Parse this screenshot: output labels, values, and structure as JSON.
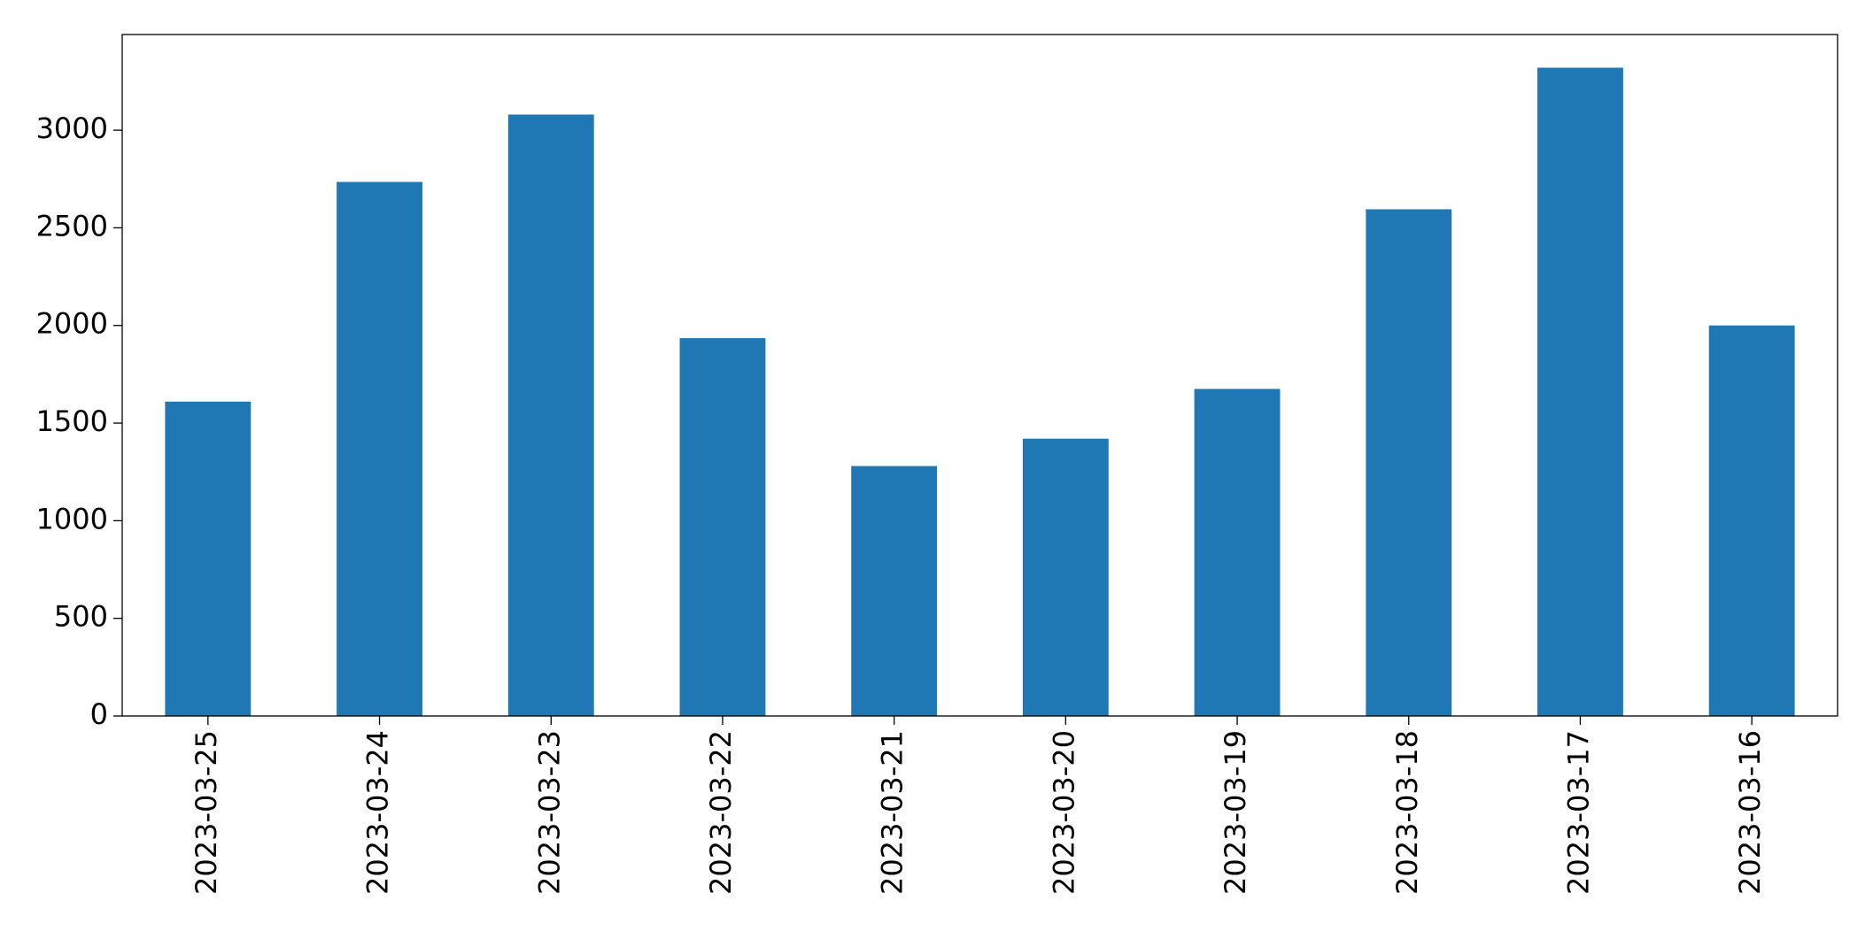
{
  "chart_data": {
    "type": "bar",
    "categories": [
      "2023-03-25",
      "2023-03-24",
      "2023-03-23",
      "2023-03-22",
      "2023-03-21",
      "2023-03-20",
      "2023-03-19",
      "2023-03-18",
      "2023-03-17",
      "2023-03-16"
    ],
    "values": [
      1610,
      2735,
      3080,
      1935,
      1280,
      1420,
      1675,
      2595,
      3320,
      2000
    ],
    "color": "#1f77b4",
    "ylim": [
      0,
      3490
    ],
    "yticks": [
      0,
      500,
      1000,
      1500,
      2000,
      2500,
      3000
    ],
    "grid": false
  }
}
